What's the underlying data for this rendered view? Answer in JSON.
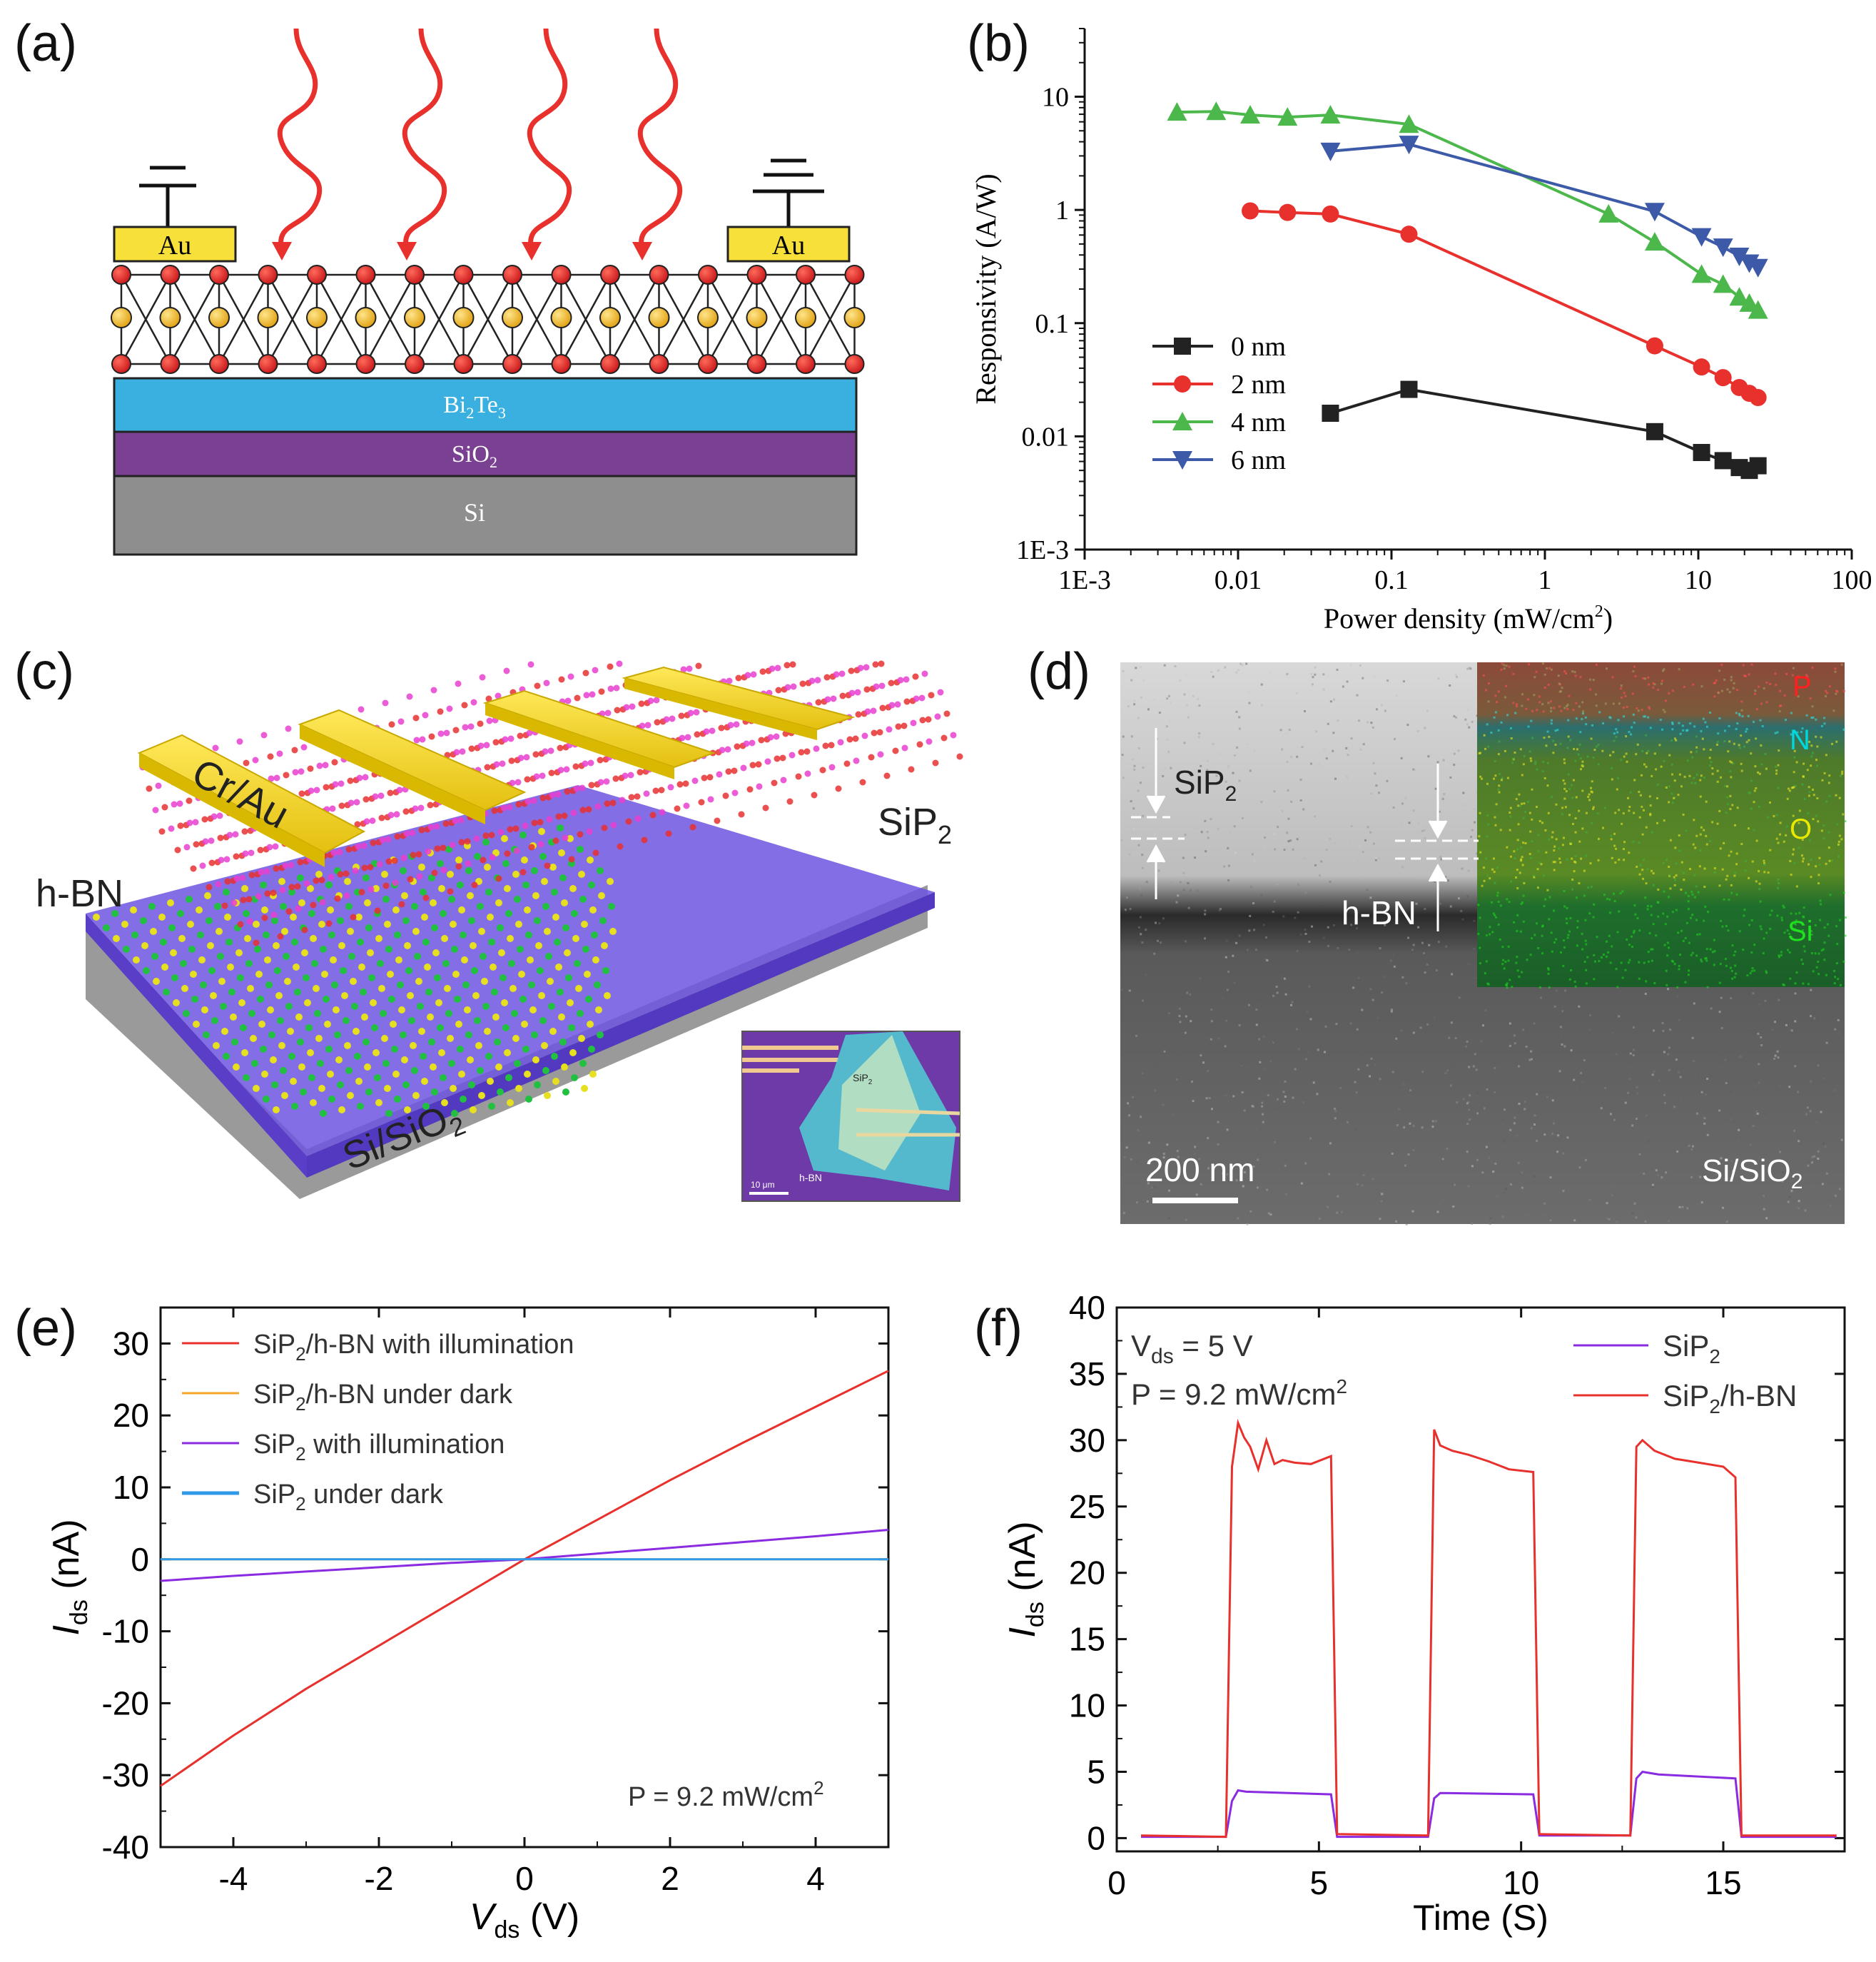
{
  "panels": {
    "a": {
      "label": "(a)",
      "electrode_left": "Au",
      "electrode_right": "Au",
      "layers": {
        "bi2te3": "Bi",
        "bi2te3_sub1": "2",
        "bi2te3_mid": "Te",
        "bi2te3_sub2": "3",
        "sio2": "SiO",
        "sio2_sub": "2",
        "si": "Si"
      }
    },
    "b": {
      "label": "(b)"
    },
    "c": {
      "label": "(c)",
      "electrode": "Cr/Au",
      "sip2": "SiP",
      "sip2_sub": "2",
      "hbn": "h-BN",
      "substrate": "Si/SiO",
      "substrate_sub": "2",
      "inset_sip2": "SiP",
      "inset_sip2_sub": "2",
      "inset_hbn": "h-BN",
      "inset_scale": "10 μm"
    },
    "d": {
      "label": "(d)",
      "sip2": "SiP",
      "sip2_sub": "2",
      "hbn": "h-BN",
      "scale": "200 nm",
      "substrate": "Si/SiO",
      "substrate_sub": "2",
      "elements": [
        "P",
        "N",
        "O",
        "Si"
      ]
    },
    "e": {
      "label": "(e)"
    },
    "f": {
      "label": "(f)"
    }
  },
  "colors": {
    "black": "#222222",
    "red": "#e8302c",
    "green": "#4cb84c",
    "blue": "#3d5aa8",
    "orange": "#f5a52a",
    "purple": "#8a2be2",
    "lightblue": "#2e9ae8",
    "bi2te3": "#39b0e0",
    "sio2": "#7a4193",
    "si": "#8e8e8e",
    "gold": "#f8e03a"
  },
  "chart_data": [
    {
      "id": "b",
      "type": "line",
      "xscale": "log",
      "yscale": "log",
      "xlabel": "Power density (mW/cm",
      "xlabel_sup": "2",
      "xlabel_end": ")",
      "ylabel": "Responsivity (A/W)",
      "xlim": [
        0.001,
        100
      ],
      "ylim": [
        0.001,
        40
      ],
      "xticks": [
        0.001,
        0.01,
        0.1,
        1,
        10,
        100
      ],
      "xtick_labels": [
        "1E-3",
        "0.01",
        "0.1",
        "1",
        "10",
        "100"
      ],
      "yticks": [
        0.001,
        0.01,
        0.1,
        1,
        10
      ],
      "ytick_labels": [
        "1E-3",
        "0.01",
        "0.1",
        "1",
        "10"
      ],
      "legend_position": "bottom-left",
      "series": [
        {
          "name": "0 nm",
          "marker": "square",
          "color": "#222222",
          "x": [
            0.04,
            0.13,
            5.2,
            10.5,
            14.5,
            18.5,
            21.5,
            24.5
          ],
          "y": [
            0.016,
            0.026,
            0.011,
            0.0072,
            0.0061,
            0.0053,
            0.005,
            0.0055
          ]
        },
        {
          "name": "2 nm",
          "marker": "circle",
          "color": "#e8302c",
          "x": [
            0.012,
            0.021,
            0.04,
            0.13,
            5.2,
            10.5,
            14.5,
            18.5,
            21.5,
            24.5
          ],
          "y": [
            0.98,
            0.95,
            0.92,
            0.61,
            0.063,
            0.041,
            0.033,
            0.027,
            0.024,
            0.022
          ]
        },
        {
          "name": "4 nm",
          "marker": "triangle-up",
          "color": "#4cb84c",
          "x": [
            0.004,
            0.0072,
            0.012,
            0.021,
            0.04,
            0.13,
            2.6,
            5.2,
            10.5,
            14.5,
            18.5,
            21.5,
            24.5
          ],
          "y": [
            7.3,
            7.4,
            6.9,
            6.6,
            6.9,
            5.7,
            0.92,
            0.52,
            0.27,
            0.22,
            0.17,
            0.15,
            0.13
          ]
        },
        {
          "name": "6 nm",
          "marker": "triangle-down",
          "color": "#3d5aa8",
          "x": [
            0.04,
            0.13,
            5.2,
            10.5,
            14.5,
            18.5,
            21.5,
            24.5
          ],
          "y": [
            3.3,
            3.8,
            0.97,
            0.58,
            0.47,
            0.39,
            0.34,
            0.31
          ]
        }
      ]
    },
    {
      "id": "e",
      "type": "line",
      "xlabel": "V",
      "xlabel_sub": "ds",
      "xlabel_end": " (V)",
      "ylabel": "I",
      "ylabel_sub": "ds",
      "ylabel_end": " (nA)",
      "xlim": [
        -5,
        5
      ],
      "ylim": [
        -40,
        35
      ],
      "xticks": [
        -4,
        -2,
        0,
        2,
        4
      ],
      "xtick_labels": [
        "-4",
        "-2",
        "0",
        "2",
        "4"
      ],
      "yticks": [
        -40,
        -30,
        -20,
        -10,
        0,
        10,
        20,
        30
      ],
      "ytick_labels": [
        "-40",
        "-30",
        "-20",
        "-10",
        "0",
        "10",
        "20",
        "30"
      ],
      "annotation": "P = 9.2 mW/cm",
      "annotation_sup": "2",
      "legend_position": "top-left",
      "series": [
        {
          "name": "SiP",
          "name_sub": "2",
          "name_end": "/h-BN  with illumination",
          "color": "#e8302c",
          "x": [
            -5,
            -4,
            -3,
            -2,
            -1,
            0,
            1,
            2,
            3,
            4,
            5
          ],
          "y": [
            -31.5,
            -24.5,
            -18.0,
            -12.0,
            -6.0,
            0,
            5.5,
            11.0,
            16.2,
            21.2,
            26.2
          ]
        },
        {
          "name": "SiP",
          "name_sub": "2",
          "name_end": "/h-BN  under dark",
          "color": "#f5a52a",
          "x": [
            -5,
            5
          ],
          "y": [
            0,
            0
          ]
        },
        {
          "name": "SiP",
          "name_sub": "2",
          "name_end": "  with illumination",
          "color": "#8a2be2",
          "x": [
            -5,
            -4,
            -3,
            -2,
            -1,
            0,
            1,
            2,
            3,
            4,
            5
          ],
          "y": [
            -3.0,
            -2.3,
            -1.7,
            -1.1,
            -0.5,
            0,
            0.8,
            1.6,
            2.4,
            3.2,
            4.1
          ]
        },
        {
          "name": "SiP",
          "name_sub": "2",
          "name_end": "  under dark",
          "color": "#2e9ae8",
          "x": [
            -5,
            5
          ],
          "y": [
            0,
            0
          ]
        }
      ]
    },
    {
      "id": "f",
      "type": "line",
      "xlabel": "Time (S)",
      "ylabel": "I",
      "ylabel_sub": "ds",
      "ylabel_end": " (nA)",
      "xlim": [
        0,
        18
      ],
      "ylim": [
        -1,
        40
      ],
      "xticks": [
        0,
        5,
        10,
        15
      ],
      "xtick_labels": [
        "0",
        "5",
        "10",
        "15"
      ],
      "yticks": [
        0,
        5,
        10,
        15,
        20,
        25,
        30,
        35,
        40
      ],
      "ytick_labels": [
        "0",
        "5",
        "10",
        "15",
        "20",
        "25",
        "30",
        "35",
        "40"
      ],
      "annotation_1": "V",
      "annotation_1_sub": "ds",
      "annotation_1_end": " = 5 V",
      "annotation_2": "P = 9.2 mW/cm",
      "annotation_2_sup": "2",
      "legend_position": "top-right",
      "series": [
        {
          "name": "SiP",
          "name_sub": "2",
          "name_end": "",
          "color": "#8a2be2",
          "x": [
            0.6,
            2.7,
            2.85,
            3.0,
            3.2,
            5.3,
            5.45,
            7.7,
            7.85,
            8.0,
            10.3,
            10.45,
            12.7,
            12.85,
            13.0,
            13.4,
            15.3,
            15.45,
            17.8
          ],
          "y": [
            0.1,
            0.1,
            2.8,
            3.6,
            3.5,
            3.3,
            0.1,
            0.1,
            3.0,
            3.4,
            3.3,
            0.2,
            0.2,
            4.5,
            5.0,
            4.8,
            4.5,
            0.1,
            0.1
          ]
        },
        {
          "name": "SiP",
          "name_sub": "2",
          "name_end": "/h-BN",
          "color": "#e8302c",
          "x": [
            0.6,
            2.7,
            2.85,
            3.0,
            3.15,
            3.3,
            3.5,
            3.7,
            3.9,
            4.1,
            4.4,
            4.8,
            5.3,
            5.45,
            7.7,
            7.85,
            8.0,
            8.3,
            8.7,
            9.2,
            9.7,
            10.3,
            10.45,
            12.7,
            12.85,
            13.0,
            13.3,
            13.8,
            14.4,
            15.0,
            15.3,
            15.45,
            17.8
          ],
          "y": [
            0.2,
            0.1,
            28.0,
            31.3,
            30.2,
            29.5,
            27.8,
            30.0,
            28.2,
            28.5,
            28.3,
            28.2,
            28.8,
            0.3,
            0.2,
            30.8,
            29.6,
            29.2,
            28.9,
            28.4,
            27.8,
            27.6,
            0.3,
            0.2,
            29.5,
            30.0,
            29.2,
            28.6,
            28.3,
            28.0,
            27.2,
            0.2,
            0.2
          ]
        }
      ]
    }
  ]
}
